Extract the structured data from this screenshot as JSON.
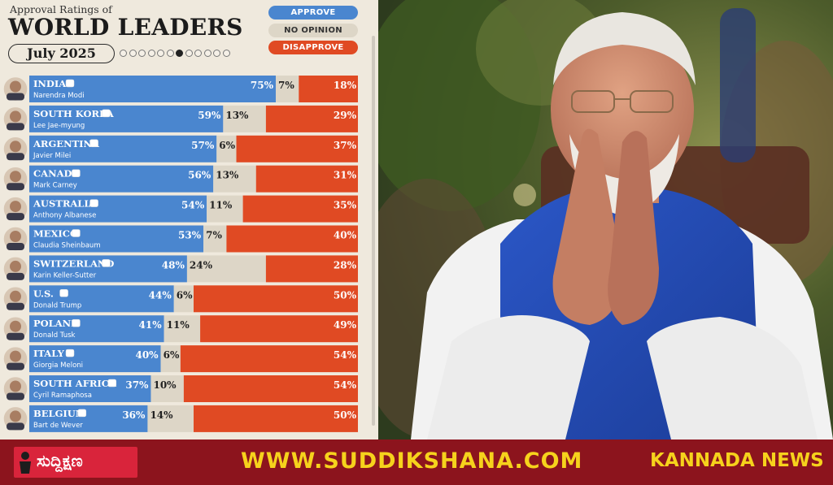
{
  "header": {
    "subtitle": "Approval Ratings of",
    "title": "WORLD LEADERS",
    "date": "July 2025"
  },
  "legend": {
    "approve": "APPROVE",
    "no_opinion": "NO OPINION",
    "disapprove": "DISAPPROVE"
  },
  "colors": {
    "approve": "#4a86cf",
    "no_opinion": "#ddd6c7",
    "disapprove": "#e04a23",
    "banner": "#8c141d",
    "banner_text": "#f6d21c"
  },
  "chart_data": {
    "type": "bar",
    "stacked": true,
    "series_names": [
      "APPROVE",
      "NO OPINION",
      "DISAPPROVE"
    ],
    "rows": [
      {
        "country": "INDIA",
        "leader": "Narendra Modi",
        "approve": 75,
        "no_opinion": 7,
        "disapprove": 18
      },
      {
        "country": "SOUTH KOREA",
        "leader": "Lee Jae-myung",
        "approve": 59,
        "no_opinion": 13,
        "disapprove": 29
      },
      {
        "country": "ARGENTINA",
        "leader": "Javier Milei",
        "approve": 57,
        "no_opinion": 6,
        "disapprove": 37
      },
      {
        "country": "CANADA",
        "leader": "Mark Carney",
        "approve": 56,
        "no_opinion": 13,
        "disapprove": 31
      },
      {
        "country": "AUSTRALIA",
        "leader": "Anthony Albanese",
        "approve": 54,
        "no_opinion": 11,
        "disapprove": 35
      },
      {
        "country": "MEXICO",
        "leader": "Claudia Sheinbaum",
        "approve": 53,
        "no_opinion": 7,
        "disapprove": 40
      },
      {
        "country": "SWITZERLAND",
        "leader": "Karin Keller-Sutter",
        "approve": 48,
        "no_opinion": 24,
        "disapprove": 28
      },
      {
        "country": "U.S.",
        "leader": "Donald Trump",
        "approve": 44,
        "no_opinion": 6,
        "disapprove": 50
      },
      {
        "country": "POLAND",
        "leader": "Donald Tusk",
        "approve": 41,
        "no_opinion": 11,
        "disapprove": 49
      },
      {
        "country": "ITALY",
        "leader": "Giorgia Meloni",
        "approve": 40,
        "no_opinion": 6,
        "disapprove": 54
      },
      {
        "country": "SOUTH AFRICA",
        "leader": "Cyril Ramaphosa",
        "approve": 37,
        "no_opinion": 10,
        "disapprove": 54
      },
      {
        "country": "BELGIUM",
        "leader": "Bart de Wever",
        "approve": 36,
        "no_opinion": 14,
        "disapprove": 50
      }
    ]
  },
  "pagination": {
    "pages": 12,
    "current": 7
  },
  "banner": {
    "logo": "ಸುದ್ದಿಕ್ಷಣ",
    "url": "WWW.SUDDIKSHANA.COM",
    "label": "KANNADA NEWS"
  }
}
